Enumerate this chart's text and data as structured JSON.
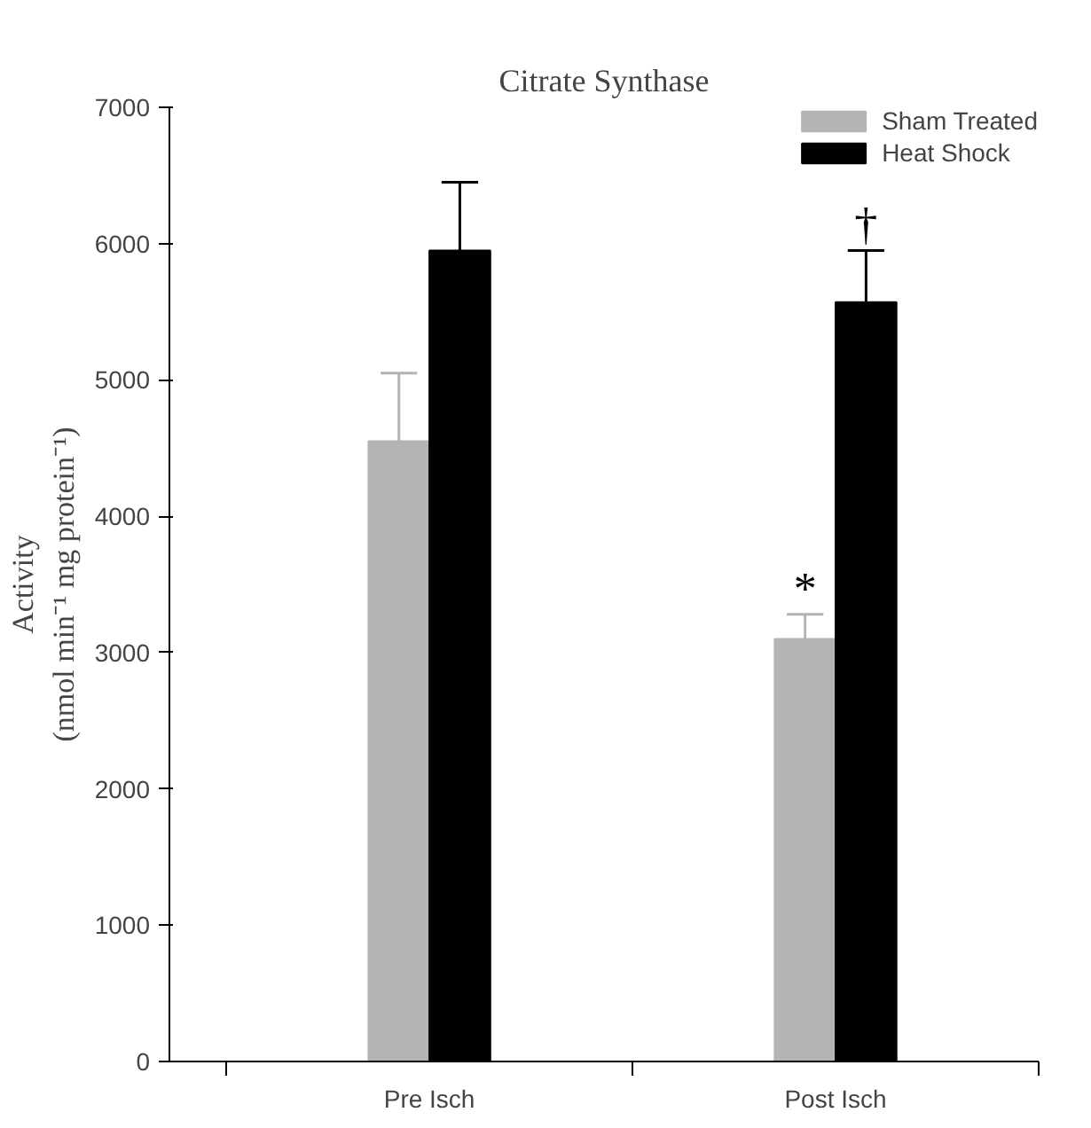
{
  "chart_data": {
    "type": "bar",
    "title": "Citrate Synthase",
    "ylabel": "Activity\n(nmol min⁻¹ mg protein⁻¹)",
    "categories": [
      "Pre Isch",
      "Post Isch"
    ],
    "series": [
      {
        "name": "Sham Treated",
        "color": "#b4b4b4",
        "values": [
          4550,
          3100
        ],
        "errors": [
          [
            4550,
            5050
          ],
          [
            3100,
            3280
          ]
        ]
      },
      {
        "name": "Heat Shock",
        "color": "#000000",
        "values": [
          5950,
          5570
        ],
        "errors": [
          [
            5950,
            6450
          ],
          [
            5570,
            5950
          ]
        ]
      }
    ],
    "ylim": [
      0,
      7000
    ],
    "yticks": [
      0,
      1000,
      2000,
      3000,
      4000,
      5000,
      6000,
      7000
    ],
    "grid": false,
    "legend": "top right",
    "annotations": [
      {
        "text": "*",
        "x": "Post Isch",
        "y": 3280
      },
      "†"
    ]
  }
}
